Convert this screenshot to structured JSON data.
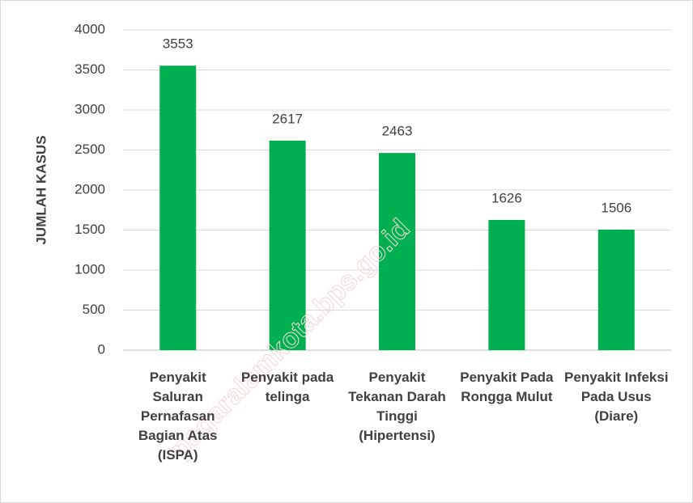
{
  "chart_data": {
    "type": "bar",
    "ylabel": "JUMLAH KASUS",
    "categories": [
      "Penyakit Saluran Pernafasan Bagian Atas (ISPA)",
      "Penyakit pada telinga",
      "Penyakit Tekanan Darah Tinggi (Hipertensi)",
      "Penyakit Pada Rongga Mulut",
      "Penyakit Infeksi Pada Usus (Diare)"
    ],
    "values": [
      3553,
      2617,
      2463,
      1626,
      1506
    ],
    "color": "#00b050",
    "ylim": [
      0,
      4000
    ],
    "yticks": [
      0,
      500,
      1000,
      1500,
      2000,
      2500,
      3000,
      3500,
      4000
    ],
    "grid": true,
    "watermark": "pagaralamkota.bps.go.id"
  }
}
